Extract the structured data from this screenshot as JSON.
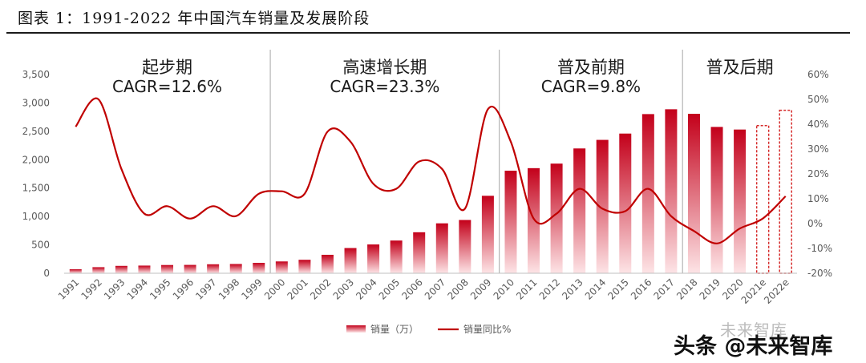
{
  "figure_title": "图表 1：1991-2022 年中国汽车销量及发展阶段",
  "watermark": {
    "logo": "未来智库",
    "text": "头条 @未来智库"
  },
  "colors": {
    "bar_top": "#c3001a",
    "bar_bottom": "#fde4e6",
    "line": "#c00000",
    "estimate_border": "#d52a2a",
    "divider": "#a6a6a6"
  },
  "chart_data": {
    "type": "bar+line",
    "categories": [
      "1991",
      "1992",
      "1993",
      "1994",
      "1995",
      "1996",
      "1997",
      "1998",
      "1999",
      "2000",
      "2001",
      "2002",
      "2003",
      "2004",
      "2005",
      "2006",
      "2007",
      "2008",
      "2009",
      "2010",
      "2011",
      "2012",
      "2013",
      "2014",
      "2015",
      "2016",
      "2017",
      "2018",
      "2019",
      "2020",
      "2021e",
      "2022e"
    ],
    "series": [
      {
        "name": "销量（万）",
        "axis": "left",
        "type": "bar",
        "values": [
          71,
          107,
          130,
          135,
          145,
          147,
          158,
          163,
          183,
          208,
          237,
          325,
          444,
          507,
          576,
          722,
          879,
          938,
          1364,
          1806,
          1851,
          1931,
          2198,
          2349,
          2460,
          2803,
          2888,
          2808,
          2577,
          2531,
          2600,
          2870
        ],
        "estimated": [
          false,
          false,
          false,
          false,
          false,
          false,
          false,
          false,
          false,
          false,
          false,
          false,
          false,
          false,
          false,
          false,
          false,
          false,
          false,
          false,
          false,
          false,
          false,
          false,
          false,
          false,
          false,
          false,
          false,
          false,
          true,
          true
        ]
      },
      {
        "name": "销量同比%",
        "axis": "right",
        "type": "line",
        "values": [
          39,
          50,
          22,
          4,
          7,
          2,
          7,
          3,
          12,
          13,
          12,
          37,
          33,
          16,
          14,
          25,
          22,
          6,
          46,
          33,
          2,
          4,
          14,
          6,
          5,
          14,
          3,
          -3,
          -8,
          -2,
          2,
          11
        ]
      }
    ],
    "y_left": {
      "min": 0,
      "max": 3500,
      "ticks": [
        "0",
        "500",
        "1,000",
        "1,500",
        "2,000",
        "2,500",
        "3,000",
        "3,500"
      ]
    },
    "y_right": {
      "min": -20,
      "max": 60,
      "ticks": [
        "-20%",
        "-10%",
        "0%",
        "10%",
        "20%",
        "30%",
        "40%",
        "50%",
        "60%"
      ]
    },
    "phases": [
      {
        "name": "起步期",
        "cagr": "CAGR=12.6%",
        "from": "1991",
        "to": "1999"
      },
      {
        "name": "高速增长期",
        "cagr": "CAGR=23.3%",
        "from": "2000",
        "to": "2009"
      },
      {
        "name": "普及前期",
        "cagr": "CAGR=9.8%",
        "from": "2010",
        "to": "2017"
      },
      {
        "name": "普及后期",
        "cagr": "",
        "from": "2018",
        "to": "2022e"
      }
    ],
    "legend": [
      {
        "label": "销量（万）",
        "kind": "bar"
      },
      {
        "label": "销量同比%",
        "kind": "line"
      }
    ]
  }
}
